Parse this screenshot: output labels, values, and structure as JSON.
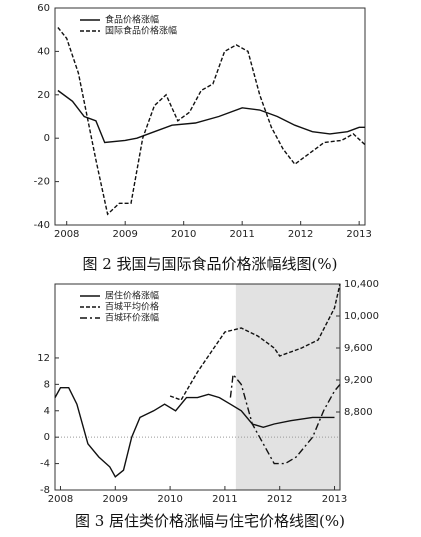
{
  "chart_data": [
    {
      "type": "line",
      "title": "图 2  我国与国际食品价格涨幅线图(%)",
      "xlim": [
        2007.8,
        2013.1
      ],
      "xticks": [
        2008,
        2009,
        2010,
        2011,
        2012,
        2013
      ],
      "ylim": [
        -40,
        60
      ],
      "yticks": [
        -40,
        -20,
        0,
        20,
        40,
        60
      ],
      "legend": "upper left",
      "series": [
        {
          "name": "食品价格涨幅",
          "color": "#111111",
          "style": "solid",
          "x": [
            2007.85,
            2008.1,
            2008.3,
            2008.5,
            2008.65,
            2009.0,
            2009.2,
            2009.5,
            2009.8,
            2010.2,
            2010.6,
            2011.0,
            2011.3,
            2011.6,
            2011.9,
            2012.2,
            2012.5,
            2012.8,
            2013.0,
            2013.1
          ],
          "values": [
            22,
            17,
            10,
            8,
            -2,
            -1,
            0,
            3,
            6,
            7,
            10,
            14,
            13,
            10,
            6,
            3,
            2,
            3,
            5,
            5
          ]
        },
        {
          "name": "国际食品价格涨幅",
          "color": "#111111",
          "style": "dashed",
          "x": [
            2007.85,
            2008.0,
            2008.2,
            2008.5,
            2008.7,
            2008.9,
            2009.1,
            2009.3,
            2009.5,
            2009.7,
            2009.9,
            2010.1,
            2010.3,
            2010.5,
            2010.7,
            2010.9,
            2011.1,
            2011.3,
            2011.5,
            2011.7,
            2011.9,
            2012.1,
            2012.4,
            2012.7,
            2012.9,
            2013.1
          ],
          "values": [
            51,
            46,
            30,
            -10,
            -35,
            -30,
            -30,
            0,
            15,
            20,
            8,
            12,
            22,
            25,
            40,
            43,
            40,
            20,
            5,
            -5,
            -12,
            -8,
            -2,
            -1,
            2,
            -3
          ]
        }
      ]
    },
    {
      "type": "line",
      "title": "图 3  居住类价格涨幅与住宅价格线图(%)",
      "xlim": [
        2007.9,
        2013.1
      ],
      "xticks": [
        2008,
        2009,
        2010,
        2011,
        2012,
        2013
      ],
      "ylim": [
        -8,
        23.2
      ],
      "yticks": [
        -8,
        -4,
        0,
        4,
        8,
        12
      ],
      "y2lim": [
        7825,
        10400
      ],
      "y2ticks": [
        {
          "value": 8800,
          "label": "8,800"
        },
        {
          "value": 9200,
          "label": "9,200"
        },
        {
          "value": 9600,
          "label": "9,600"
        },
        {
          "value": 10000,
          "label": "10,000"
        },
        {
          "value": 10400,
          "label": "10,400"
        }
      ],
      "highlight_x": [
        2011.2,
        2013.1
      ],
      "legend": "upper left",
      "series": [
        {
          "name": "居住价格涨幅",
          "color": "#111111",
          "style": "solid",
          "x": [
            2007.9,
            2008.0,
            2008.15,
            2008.3,
            2008.5,
            2008.7,
            2008.9,
            2009.0,
            2009.15,
            2009.3,
            2009.45,
            2009.7,
            2009.9,
            2010.1,
            2010.3,
            2010.5,
            2010.7,
            2010.9,
            2011.1,
            2011.3,
            2011.5,
            2011.7,
            2011.9,
            2012.2,
            2012.6,
            2012.9,
            2013.0
          ],
          "values": [
            6,
            7.5,
            7.5,
            5,
            -1,
            -3,
            -4.5,
            -6,
            -5,
            0,
            3,
            4,
            5,
            4,
            6,
            6,
            6.5,
            6,
            5,
            4,
            2,
            1.5,
            2,
            2.5,
            3,
            3,
            3
          ]
        },
        {
          "name": "百城平均价格",
          "color": "#111111",
          "style": "dashed",
          "axis": "y2",
          "x": [
            2010.0,
            2010.2,
            2010.5,
            2010.8,
            2011.0,
            2011.3,
            2011.6,
            2011.9,
            2012.0,
            2012.4,
            2012.7,
            2013.0,
            2013.1
          ],
          "values": [
            9000,
            8950,
            9300,
            9600,
            9800,
            9850,
            9750,
            9600,
            9500,
            9600,
            9700,
            10100,
            10400
          ]
        },
        {
          "name": "百城环价涨幅",
          "color": "#111111",
          "style": "dashdot",
          "x": [
            2011.1,
            2011.15,
            2011.3,
            2011.5,
            2011.7,
            2011.9,
            2012.1,
            2012.3,
            2012.6,
            2012.8,
            2013.0,
            2013.1
          ],
          "values": [
            6,
            9.5,
            8,
            2,
            -1,
            -4,
            -4,
            -3,
            0,
            4,
            7,
            8
          ]
        }
      ]
    }
  ]
}
